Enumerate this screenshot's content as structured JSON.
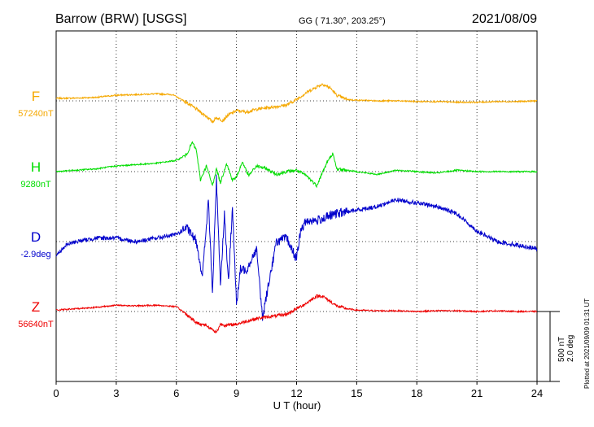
{
  "header": {
    "station": "Barrow (BRW)  [USGS]",
    "coords": "GG ( 71.30°, 203.25°)",
    "date": "2021/08/09"
  },
  "footer": {
    "plotted": "Plotted at 2021/09/09 01:31  UT"
  },
  "scale_bar": {
    "nt": "500 nT",
    "deg": "2.0 deg"
  },
  "colors": {
    "F": "#f5a800",
    "H": "#00dd00",
    "D": "#0000cc",
    "Z": "#ee0000",
    "axis": "#000000"
  },
  "chart_data": {
    "type": "line",
    "title": "Barrow (BRW)  [USGS]",
    "xlabel": "U T (hour)",
    "ylabel": "",
    "xlim": [
      0,
      24
    ],
    "xticks": [
      "0",
      "3",
      "6",
      "9",
      "12",
      "15",
      "18",
      "21",
      "24"
    ],
    "grid": true,
    "scale": {
      "nT_per_bar": 500,
      "deg_per_bar": 2.0
    },
    "series": [
      {
        "name": "F",
        "baseline_label": "57240nT",
        "unit": "nT",
        "x": [
          0,
          1,
          2,
          3,
          4,
          5,
          5.8,
          6.5,
          7,
          7.5,
          7.8,
          8,
          8.3,
          8.6,
          9,
          9.5,
          10,
          10.5,
          11,
          11.5,
          12,
          12.5,
          13,
          13.3,
          13.7,
          14,
          14.5,
          15,
          16,
          17,
          18,
          19,
          20,
          21,
          22,
          23,
          24
        ],
        "values": [
          18,
          20,
          25,
          40,
          45,
          50,
          45,
          -10,
          -60,
          -110,
          -150,
          -120,
          -140,
          -100,
          -70,
          -80,
          -60,
          -50,
          -40,
          -30,
          10,
          60,
          100,
          120,
          90,
          40,
          10,
          5,
          0,
          0,
          -5,
          -5,
          -10,
          -10,
          -5,
          -5,
          0
        ]
      },
      {
        "name": "H",
        "baseline_label": "9280nT",
        "unit": "nT",
        "x": [
          0,
          1,
          2,
          3,
          4,
          5,
          6,
          6.5,
          6.8,
          7,
          7.2,
          7.5,
          7.8,
          8,
          8.2,
          8.5,
          8.8,
          9,
          9.3,
          9.6,
          10,
          10.5,
          11,
          11.5,
          12,
          12.5,
          13,
          13.5,
          13.8,
          14,
          15,
          16,
          17,
          18,
          19,
          20,
          21,
          22,
          23,
          24
        ],
        "values": [
          0,
          10,
          20,
          40,
          50,
          60,
          80,
          120,
          210,
          150,
          -60,
          40,
          -100,
          20,
          -80,
          60,
          -60,
          -40,
          70,
          -30,
          40,
          20,
          -20,
          0,
          10,
          -30,
          -100,
          60,
          130,
          20,
          0,
          -20,
          10,
          0,
          -10,
          10,
          0,
          0,
          0,
          0
        ]
      },
      {
        "name": "D",
        "baseline_label": "-2.9deg",
        "unit": "deg",
        "x": [
          0,
          0.5,
          1,
          2,
          3,
          4,
          5,
          6,
          6.5,
          7,
          7.3,
          7.6,
          7.8,
          8,
          8.2,
          8.4,
          8.6,
          8.8,
          9,
          9.2,
          9.5,
          10,
          10.3,
          10.6,
          11,
          11.5,
          12,
          12.2,
          12.5,
          13,
          14,
          15,
          16,
          17,
          18,
          19,
          20,
          21,
          22,
          23,
          24
        ],
        "values": [
          -0.4,
          -0.1,
          0,
          0.1,
          0.1,
          0.0,
          0.1,
          0.2,
          0.4,
          0.0,
          -1.0,
          1.2,
          -1.5,
          1.8,
          -1.2,
          0.8,
          -1.2,
          1.0,
          -1.8,
          -0.8,
          -0.8,
          -0.2,
          -2.2,
          -1.2,
          0.0,
          0.1,
          -0.5,
          0.3,
          0.6,
          0.6,
          0.8,
          0.9,
          1.0,
          1.2,
          1.1,
          1.0,
          0.8,
          0.3,
          0.0,
          -0.1,
          -0.2
        ]
      },
      {
        "name": "Z",
        "baseline_label": "56640nT",
        "unit": "nT",
        "x": [
          0,
          1,
          2,
          3,
          4,
          5,
          6,
          6.5,
          7,
          7.5,
          7.8,
          8,
          8.2,
          8.5,
          9,
          9.5,
          10,
          10.5,
          11,
          11.5,
          12,
          12.5,
          13,
          13.3,
          13.7,
          14,
          14.5,
          15,
          16,
          17,
          18,
          19,
          20,
          21,
          22,
          23,
          24
        ],
        "values": [
          10,
          20,
          30,
          45,
          40,
          45,
          35,
          -20,
          -80,
          -100,
          -130,
          -150,
          -90,
          -100,
          -90,
          -70,
          -50,
          -40,
          -30,
          -20,
          20,
          60,
          110,
          110,
          70,
          40,
          20,
          10,
          5,
          5,
          0,
          5,
          5,
          0,
          5,
          0,
          0
        ]
      }
    ]
  }
}
